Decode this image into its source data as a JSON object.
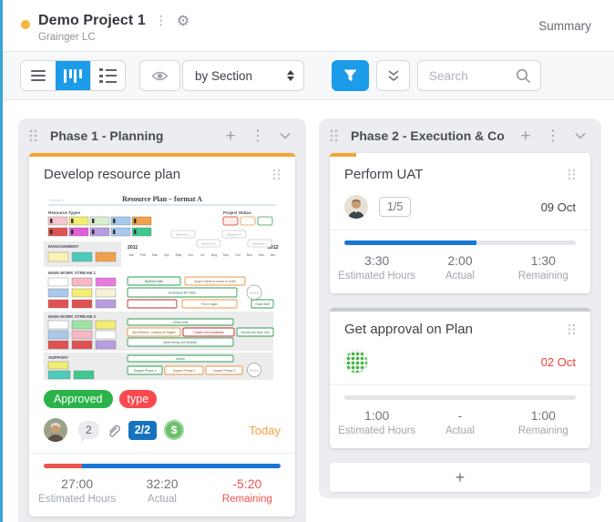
{
  "colors": {
    "accent_blue": "#1c9be8",
    "progress_blue": "#1976d2",
    "orange": "#f5a333",
    "overdue_red": "#f23f36",
    "negative_red": "#ef5350",
    "tag_green": "#2bb34b",
    "tag_red": "#f9494f",
    "column_bg": "#ebedf0"
  },
  "header": {
    "title": "Demo Project 1",
    "subtitle": "Grainger LC",
    "summary_label": "Summary"
  },
  "toolbar": {
    "group_by": "by Section",
    "search_placeholder": "Search"
  },
  "stat_labels": {
    "estimated": "Estimated Hours",
    "actual": "Actual",
    "remaining": "Remaining"
  },
  "board": {
    "columns": [
      {
        "title": "Phase 1 - Planning"
      },
      {
        "title": "Phase 2 - Execution & Co"
      }
    ],
    "phase1_card": {
      "title": "Develop resource plan",
      "tags": {
        "approved": "Approved",
        "type": "type"
      },
      "comments_count": "2",
      "checklist": "2/2",
      "money_symbol": "$",
      "due": "Today",
      "estimated": "27:00",
      "actual": "32:20",
      "remaining": "-5:20",
      "progress": {
        "red": 16,
        "blue": 84,
        "strip": 100
      }
    },
    "uat_card": {
      "title": "Perform UAT",
      "checklist": "1/5",
      "due": "09 Oct",
      "estimated": "3:30",
      "actual": "2:00",
      "remaining": "1:30",
      "progress": {
        "blue": 57,
        "strip": 10
      }
    },
    "approval_card": {
      "title": "Get approval on Plan",
      "due": "02 Oct",
      "estimated": "1:00",
      "actual": "-",
      "remaining": "1:00",
      "progress": {
        "blue": 0,
        "strip": 100
      }
    },
    "add_card_label": "+"
  },
  "resource_plan": {
    "version": "Version 2",
    "title": "Resource Plan – format A",
    "legend_title": "Resource Types",
    "status_title": "Project Status",
    "sections": [
      "MANAGEMENT",
      "MAIN WORK STREAM 1",
      "MAIN WORK STREAM 2",
      "SUPPORT"
    ],
    "year_start": "2011",
    "year_end": "2012",
    "end_month": "Jan",
    "months": [
      "Jan",
      "Feb",
      "Mar",
      "Apr",
      "May",
      "Jun",
      "Jul",
      "Aug",
      "Sep",
      "Oct",
      "Nov",
      "Dec"
    ],
    "milestones": [
      "Milestone 1",
      "Milestone 2",
      "Milestone 3",
      "Milestone 4"
    ],
    "bars": [
      "Bedford Falls",
      "Angel Clarence comes to Earth",
      "Underwear Mr Potter",
      "Review",
      "",
      "Find it again",
      "Good Stuff",
      "Great Units",
      "Big Robbery - looking for Bagsie",
      "Trouble with installation",
      "Survive the New York",
      "Save Jimmy and Tommy?",
      "Admin",
      "Support Phase 1",
      "Support Phase 2",
      "Support Phase 3",
      "Review"
    ]
  }
}
